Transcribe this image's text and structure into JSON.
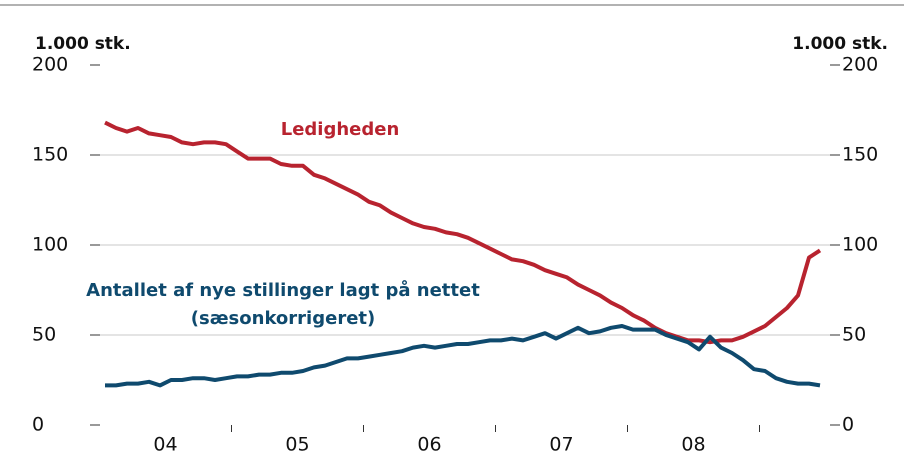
{
  "chart_data": {
    "type": "line",
    "y_label": "1.000 stk.",
    "y2_label": "1.000 stk.",
    "categories": [
      null,
      null,
      null,
      null,
      null,
      null,
      "04",
      null,
      null,
      null,
      null,
      null,
      null,
      null,
      null,
      null,
      null,
      null,
      "05",
      null,
      null,
      null,
      null,
      null,
      null,
      null,
      null,
      null,
      null,
      null,
      "06",
      null,
      null,
      null,
      null,
      null,
      null,
      null,
      null,
      null,
      null,
      null,
      "07",
      null,
      null,
      null,
      null,
      null,
      null,
      null,
      null,
      null,
      null,
      null,
      "08",
      null,
      null,
      null,
      null,
      null,
      null,
      null,
      null,
      null,
      null,
      null
    ],
    "series": [
      {
        "name": "Ledigheden",
        "color": "#b8232f",
        "values": [
          168,
          165,
          163,
          165,
          162,
          161,
          160,
          157,
          156,
          157,
          157,
          156,
          152,
          148,
          148,
          148,
          145,
          144,
          144,
          139,
          137,
          134,
          131,
          128,
          124,
          122,
          118,
          115,
          112,
          110,
          109,
          107,
          106,
          104,
          101,
          98,
          95,
          92,
          91,
          89,
          86,
          84,
          82,
          78,
          75,
          72,
          68,
          65,
          61,
          58,
          54,
          51,
          49,
          47,
          47,
          46,
          47,
          47,
          49,
          52,
          55,
          60,
          65,
          72,
          93,
          97
        ]
      },
      {
        "name": "Antallet af nye stillinger lagt på nettet",
        "subname": "(sæsonkorrigeret)",
        "color": "#0f4a6e",
        "axis": "y2",
        "values": [
          22,
          22,
          23,
          23,
          24,
          22,
          25,
          25,
          26,
          26,
          25,
          26,
          27,
          27,
          28,
          28,
          29,
          29,
          30,
          32,
          33,
          35,
          37,
          37,
          38,
          39,
          40,
          41,
          43,
          44,
          43,
          44,
          45,
          45,
          46,
          47,
          47,
          48,
          47,
          49,
          51,
          48,
          51,
          54,
          51,
          52,
          54,
          55,
          53,
          53,
          53,
          50,
          48,
          46,
          42,
          49,
          43,
          40,
          36,
          31,
          30,
          26,
          24,
          23,
          23,
          22
        ]
      }
    ],
    "ylim": [
      0,
      200
    ],
    "yticks": [
      0,
      50,
      100,
      150,
      200
    ],
    "y2lim": [
      0,
      200
    ],
    "y2ticks": [
      0,
      50,
      100,
      150,
      200
    ],
    "grid": true
  }
}
